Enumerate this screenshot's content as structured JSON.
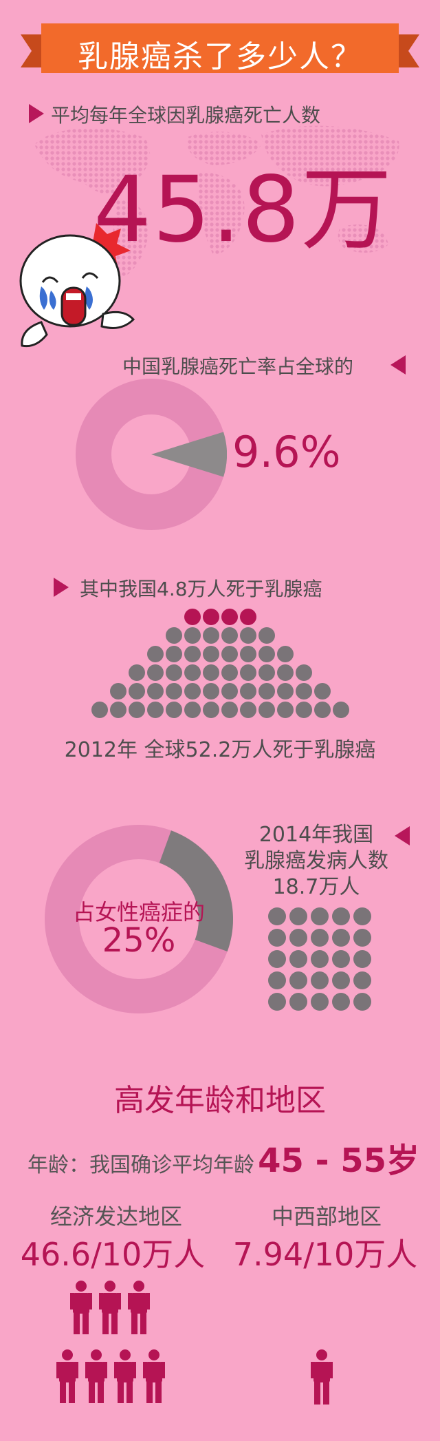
{
  "title": "乳腺癌杀了多少人？",
  "global_deaths": {
    "heading": "平均每年全球因乳腺癌死亡人数",
    "value": "45.8万"
  },
  "china_share": {
    "heading": "中国乳腺癌死亡率占全球的",
    "percent_label": "9.6%",
    "share": 0.096
  },
  "china_deaths": {
    "heading": "其中我国4.8万人死于乳腺癌",
    "caption": "2012年 全球52.2万人死于乳腺癌",
    "dot_rows": [
      4,
      6,
      8,
      10,
      12,
      14
    ],
    "highlighted_dots": 4
  },
  "incidence": {
    "donut_label": "占女性癌症的",
    "donut_value": "25%",
    "share": 0.25,
    "line1": "2014年我国",
    "line2": "乳腺癌发病人数",
    "line3": "18.7万人"
  },
  "age_region": {
    "section_title": "高发年龄和地区",
    "age_prefix": "年龄：我国确诊平均年龄",
    "age_value": "45 - 55岁",
    "developed_label": "经济发达地区",
    "developed_value": "46.6/10万人",
    "central_west_label": "中西部地区",
    "central_west_value": "7.94/10万人"
  },
  "colors": {
    "background": "#f9a6c8",
    "accent": "#b51454",
    "banner": "#f26a2b",
    "gray": "#7a7478",
    "donut": "#e68ab6"
  }
}
